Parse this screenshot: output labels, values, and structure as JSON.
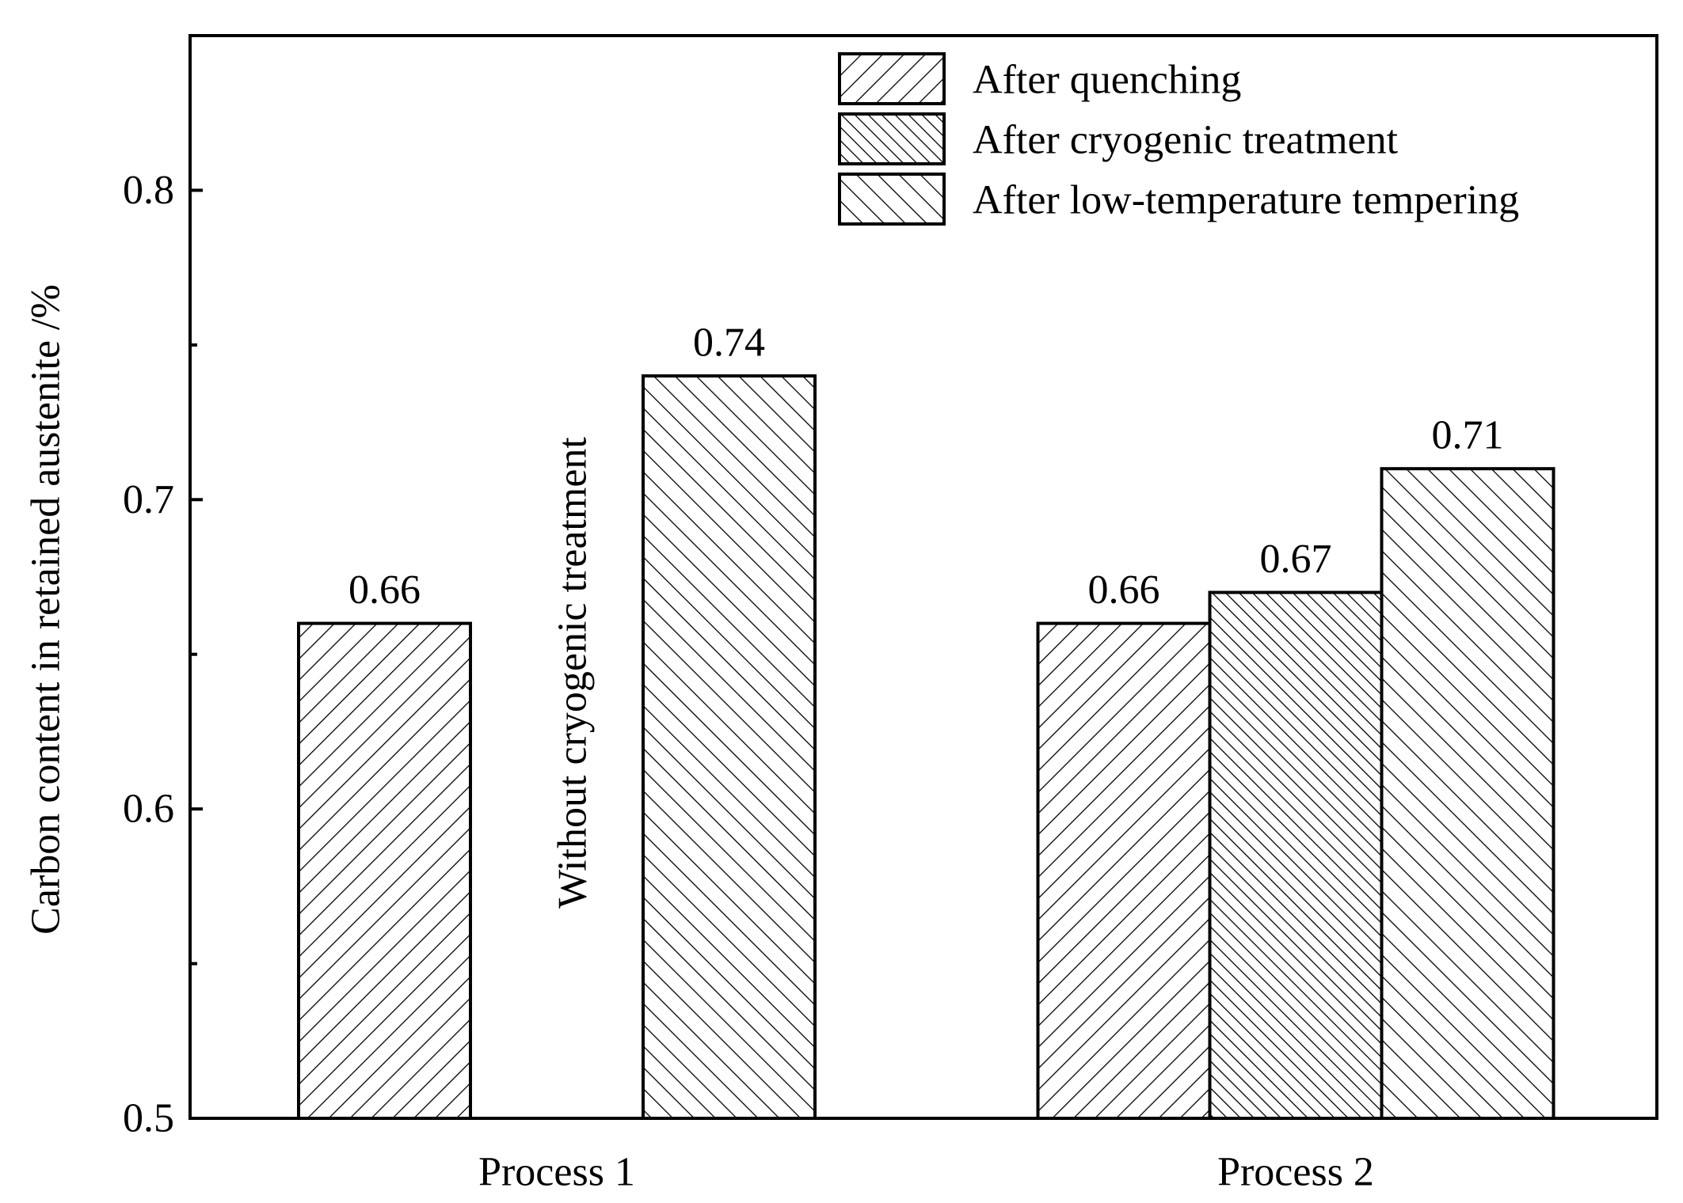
{
  "chart_data": {
    "type": "bar",
    "title": "",
    "xlabel": "",
    "ylabel": "Carbon content in retained austenite /%",
    "ylim": [
      0.5,
      0.85
    ],
    "yticks": [
      0.5,
      0.6,
      0.7,
      0.8
    ],
    "ytick_labels": [
      "0.5",
      "0.6",
      "0.7",
      "0.8"
    ],
    "categories": [
      "Process 1",
      "Process 2"
    ],
    "series": [
      {
        "name": "After quenching",
        "pattern": "hatch-forward",
        "values": [
          0.66,
          0.66
        ],
        "labels": [
          "0.66",
          "0.66"
        ]
      },
      {
        "name": "After cryogenic treatment",
        "pattern": "hatch-cross",
        "values": [
          null,
          0.67
        ],
        "labels": [
          "",
          "0.67"
        ]
      },
      {
        "name": "After low-temperature tempering",
        "pattern": "hatch-back",
        "values": [
          0.74,
          0.71
        ],
        "labels": [
          "0.74",
          "0.71"
        ]
      }
    ],
    "annotations": [
      {
        "text": "Without cryogenic treatment",
        "category": "Process 1",
        "orientation": "vertical"
      }
    ],
    "legend_position": "top-right",
    "grid": false,
    "colors": {
      "bar_fill": "#ffffff",
      "stroke": "#000000"
    }
  }
}
